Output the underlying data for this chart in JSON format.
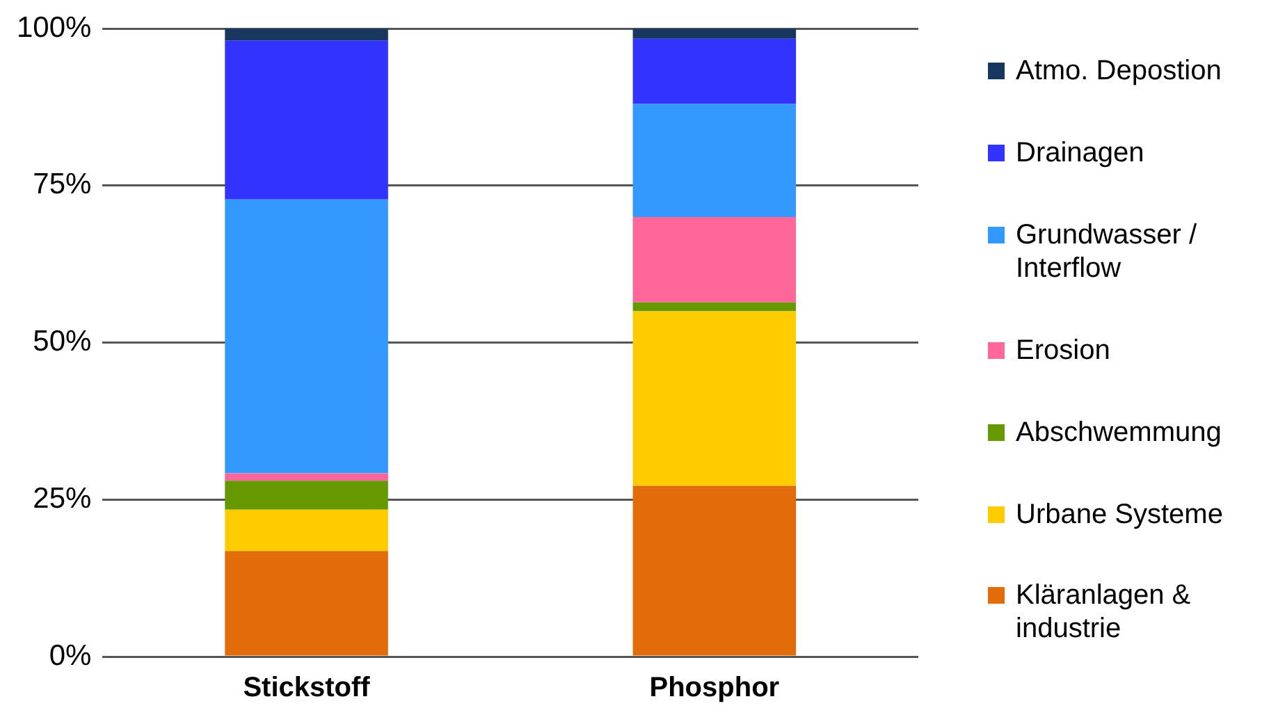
{
  "chart_data": {
    "type": "bar",
    "stacked": true,
    "categories": [
      "Stickstoff",
      "Phosphor"
    ],
    "series": [
      {
        "name": "Kläranlagen & industrie",
        "color": "#e36c0a",
        "values": [
          16.8,
          27.2
        ]
      },
      {
        "name": "Urbane Systeme",
        "color": "#ffcc00",
        "values": [
          6.6,
          27.8
        ]
      },
      {
        "name": "Abschwemmung",
        "color": "#669900",
        "values": [
          4.6,
          1.4
        ]
      },
      {
        "name": "Erosion",
        "color": "#ff6699",
        "values": [
          1.2,
          13.6
        ]
      },
      {
        "name": "Grundwasser / Interflow",
        "color": "#3399ff",
        "values": [
          43.6,
          18.0
        ]
      },
      {
        "name": "Drainagen",
        "color": "#3333ff",
        "values": [
          25.3,
          10.4
        ]
      },
      {
        "name": "Atmo. Depostion",
        "color": "#17375e",
        "values": [
          1.9,
          1.6
        ]
      }
    ],
    "ylim": [
      0,
      100
    ],
    "yticks": [
      {
        "value": 0,
        "label": "0%"
      },
      {
        "value": 25,
        "label": "25%"
      },
      {
        "value": 50,
        "label": "50%"
      },
      {
        "value": 75,
        "label": "75%"
      },
      {
        "value": 100,
        "label": "100%"
      }
    ],
    "grid": "y",
    "legend": "right"
  }
}
